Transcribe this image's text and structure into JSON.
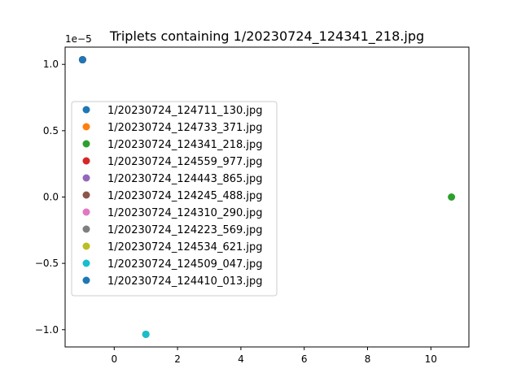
{
  "chart_data": {
    "type": "scatter",
    "title": "Triplets containing 1/20230724_124341_218.jpg",
    "xlabel": "",
    "ylabel": "",
    "y_scale_note": "1e−5",
    "xlim": [
      -1.55,
      11.2
    ],
    "ylim": [
      -1.13e-05,
      1.13e-05
    ],
    "x_ticks": [
      0,
      2,
      4,
      6,
      8,
      10
    ],
    "x_tick_labels": [
      "0",
      "2",
      "4",
      "6",
      "8",
      "10"
    ],
    "y_ticks": [
      -1e-05,
      -5e-06,
      0,
      5e-06,
      1e-05
    ],
    "y_tick_labels": [
      "−1.0",
      "−0.5",
      "0.0",
      "0.5",
      "1.0"
    ],
    "grid": false,
    "legend_position": "center-left",
    "series": [
      {
        "name": "1/20230724_124711_130.jpg",
        "color": "#1f77b4",
        "x": [
          -1.0
        ],
        "y": [
          1.035e-05
        ]
      },
      {
        "name": "1/20230724_124733_371.jpg",
        "color": "#ff7f0e",
        "x": [
          -1.0
        ],
        "y": [
          1.035e-05
        ]
      },
      {
        "name": "1/20230724_124341_218.jpg",
        "color": "#2ca02c",
        "x": [
          10.65
        ],
        "y": [
          0.0
        ]
      },
      {
        "name": "1/20230724_124559_977.jpg",
        "color": "#d62728",
        "x": [
          -1.0
        ],
        "y": [
          1.035e-05
        ]
      },
      {
        "name": "1/20230724_124443_865.jpg",
        "color": "#9467bd",
        "x": [
          -1.0
        ],
        "y": [
          1.035e-05
        ]
      },
      {
        "name": "1/20230724_124245_488.jpg",
        "color": "#8c564b",
        "x": [
          -1.0
        ],
        "y": [
          1.035e-05
        ]
      },
      {
        "name": "1/20230724_124310_290.jpg",
        "color": "#e377c2",
        "x": [
          1.0
        ],
        "y": [
          -1.035e-05
        ]
      },
      {
        "name": "1/20230724_124223_569.jpg",
        "color": "#7f7f7f",
        "x": [
          1.0
        ],
        "y": [
          -1.035e-05
        ]
      },
      {
        "name": "1/20230724_124534_621.jpg",
        "color": "#bcbd22",
        "x": [
          1.0
        ],
        "y": [
          -1.035e-05
        ]
      },
      {
        "name": "1/20230724_124509_047.jpg",
        "color": "#17becf",
        "x": [
          1.0
        ],
        "y": [
          -1.035e-05
        ]
      },
      {
        "name": "1/20230724_124410_013.jpg",
        "color": "#1f77b4",
        "x": [
          -1.0
        ],
        "y": [
          1.035e-05
        ]
      }
    ]
  }
}
